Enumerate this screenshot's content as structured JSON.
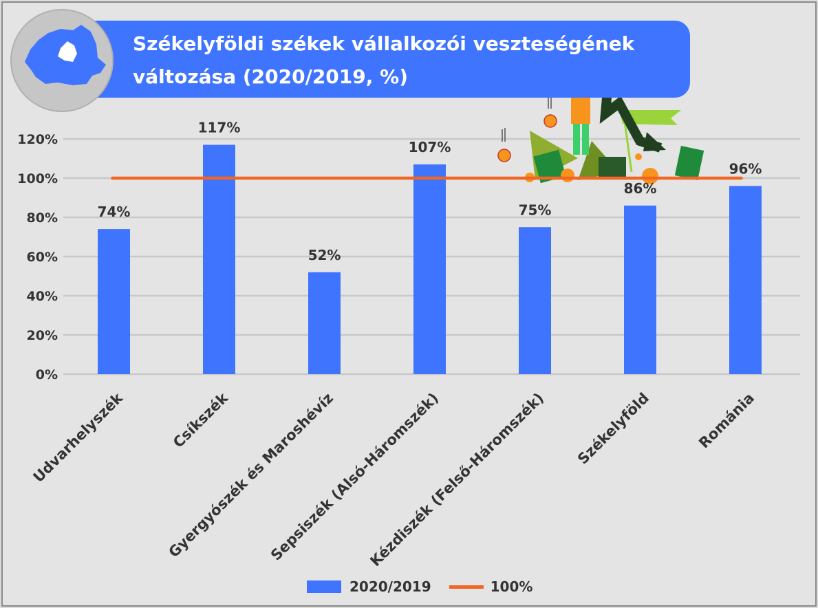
{
  "title": "Székelyföldi székek vállalkozói veszteségének változása (2020/2019, %)",
  "colors": {
    "bar": "#3f74ff",
    "reference_line": "#f26522",
    "grid": "#c8c8c8",
    "text": "#333333"
  },
  "chart_data": {
    "type": "bar",
    "categories": [
      "Udvarhelyszék",
      "Csíkszék",
      "Gyergyószék és Maroshévíz",
      "Sepsiszék (Alsó-Háromszék)",
      "Kézdiszék (Felső-Háromszék)",
      "Székelyföld",
      "Románia"
    ],
    "series": [
      {
        "name": "2020/2019",
        "values": [
          74,
          117,
          52,
          107,
          75,
          86,
          96
        ],
        "labels": [
          "74%",
          "117%",
          "52%",
          "107%",
          "75%",
          "86%",
          "96%"
        ]
      }
    ],
    "reference_line": {
      "name": "100%",
      "value": 100
    },
    "ylim": [
      0,
      120
    ],
    "yticks": [
      0,
      20,
      40,
      60,
      80,
      100,
      120
    ],
    "ytick_labels": [
      "0%",
      "20%",
      "40%",
      "60%",
      "80%",
      "100%",
      "120%"
    ],
    "grid": true,
    "legend_position": "bottom"
  },
  "legend": [
    {
      "label": "2020/2019",
      "type": "bar"
    },
    {
      "label": "100%",
      "type": "line"
    }
  ]
}
